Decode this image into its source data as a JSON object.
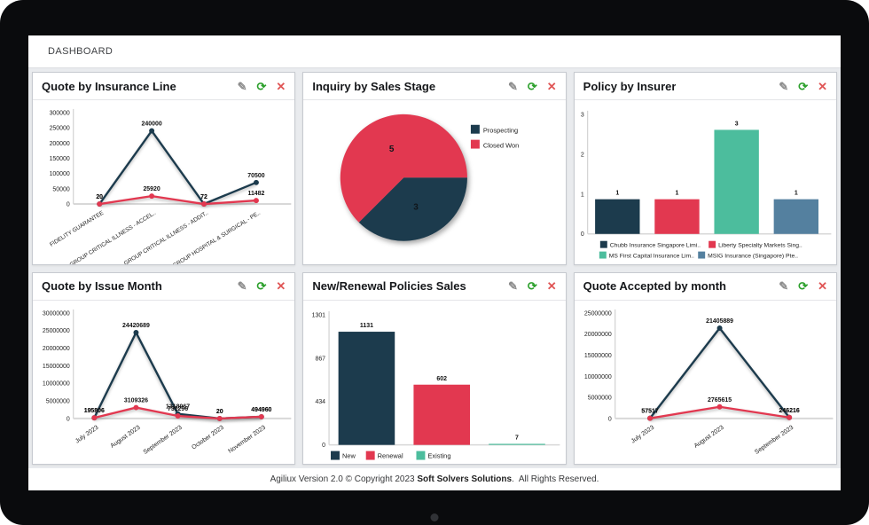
{
  "header": {
    "title": "DASHBOARD"
  },
  "icons": {
    "edit": "✎",
    "refresh": "⟳",
    "close": "✕"
  },
  "colors": {
    "navy": "#1c3b4d",
    "red": "#e23850",
    "teal": "#4cbd9d",
    "steel": "#54809f",
    "edit_icon": "#8d8d8d",
    "refresh_icon": "#2ca02c",
    "close_icon": "#e05555",
    "canvas_bg": "#e9ebee",
    "axis": "#c9c9c9",
    "baseline": "#d8d8d8",
    "label_text": "#111111"
  },
  "footer": {
    "prefix": "Agiliux Version 2.0 © Copyright 2023 ",
    "brand": "Soft Solvers Solutions",
    "suffix": ".  All Rights Reserved."
  },
  "chart_data": [
    {
      "id": "quote-by-insurance-line",
      "title": "Quote by Insurance Line",
      "type": "line",
      "categories": [
        "FIDELITY GUARANTEE",
        "GROUP CRITICAL ILLNESS - ACCEL..",
        "GROUP CRITICAL ILLNESS - ADDIT..",
        "GROUP HOSPITAL & SURGICAL - PE.."
      ],
      "series": [
        {
          "color": "navy",
          "values": [
            20,
            240000,
            72,
            70500
          ]
        },
        {
          "color": "red",
          "values": [
            20,
            25920,
            72,
            11482
          ]
        }
      ],
      "yticks": [
        0,
        50000,
        100000,
        150000,
        200000,
        250000,
        300000
      ],
      "ylim": [
        0,
        300000
      ],
      "grid": false,
      "legend_position": "none"
    },
    {
      "id": "inquiry-by-sales-stage",
      "title": "Inquiry by Sales Stage",
      "type": "pie",
      "slices": [
        {
          "label": "Prospecting",
          "value": 3,
          "color": "navy"
        },
        {
          "label": "Closed Won",
          "value": 5,
          "color": "red"
        }
      ],
      "start_angle_deg": 0,
      "direction": "clockwise",
      "legend_position": "right"
    },
    {
      "id": "policy-by-insurer",
      "title": "Policy by Insurer",
      "type": "bar",
      "categories": [
        "Chubb Insurance Singapore Limi..",
        "Liberty Specialty Markets Sing..",
        "MS First Capital Insurance Lim..",
        "MSIG Insurance (Singapore) Pte.."
      ],
      "values": [
        1,
        1,
        3,
        1
      ],
      "bar_colors": [
        "navy",
        "red",
        "teal",
        "steel"
      ],
      "yticks": [
        0,
        1,
        2,
        3
      ],
      "ylim": [
        0,
        3
      ],
      "bar_height_scale": 0.87,
      "legend_position": "bottom-wrap",
      "show_category_axis_labels": false
    },
    {
      "id": "quote-by-issue-month",
      "title": "Quote by Issue Month",
      "type": "line",
      "categories": [
        "July 2023",
        "August 2023",
        "September 2023",
        "October 2023",
        "November 2023"
      ],
      "series": [
        {
          "color": "navy",
          "values": [
            195806,
            24420689,
            1318967,
            20,
            494960
          ]
        },
        {
          "color": "red",
          "values": [
            195806,
            3109326,
            731296,
            20,
            494960
          ]
        }
      ],
      "yticks": [
        0,
        5000000,
        10000000,
        15000000,
        20000000,
        25000000,
        30000000
      ],
      "ylim": [
        0,
        30000000
      ],
      "grid": false,
      "legend_position": "none"
    },
    {
      "id": "new-renewal-policies-sales",
      "title": "New/Renewal Policies Sales",
      "type": "bar",
      "categories": [
        "New",
        "Renewal",
        "Existing"
      ],
      "values": [
        1131,
        602,
        7
      ],
      "bar_colors": [
        "navy",
        "red",
        "teal"
      ],
      "yticks": [
        0,
        434,
        867,
        1301
      ],
      "ylim": [
        0,
        1301
      ],
      "legend_position": "bottom-left",
      "show_category_axis_labels": false
    },
    {
      "id": "quote-accepted-by-month",
      "title": "Quote Accepted by month",
      "type": "line",
      "categories": [
        "July 2023",
        "August 2023",
        "September 2023"
      ],
      "series": [
        {
          "color": "navy",
          "values": [
            57517,
            21405889,
            246216
          ]
        },
        {
          "color": "red",
          "values": [
            57517,
            2765615,
            246216
          ]
        }
      ],
      "yticks": [
        0,
        5000000,
        10000000,
        15000000,
        20000000,
        25000000
      ],
      "ylim": [
        0,
        25000000
      ],
      "grid": false,
      "legend_position": "none"
    }
  ]
}
